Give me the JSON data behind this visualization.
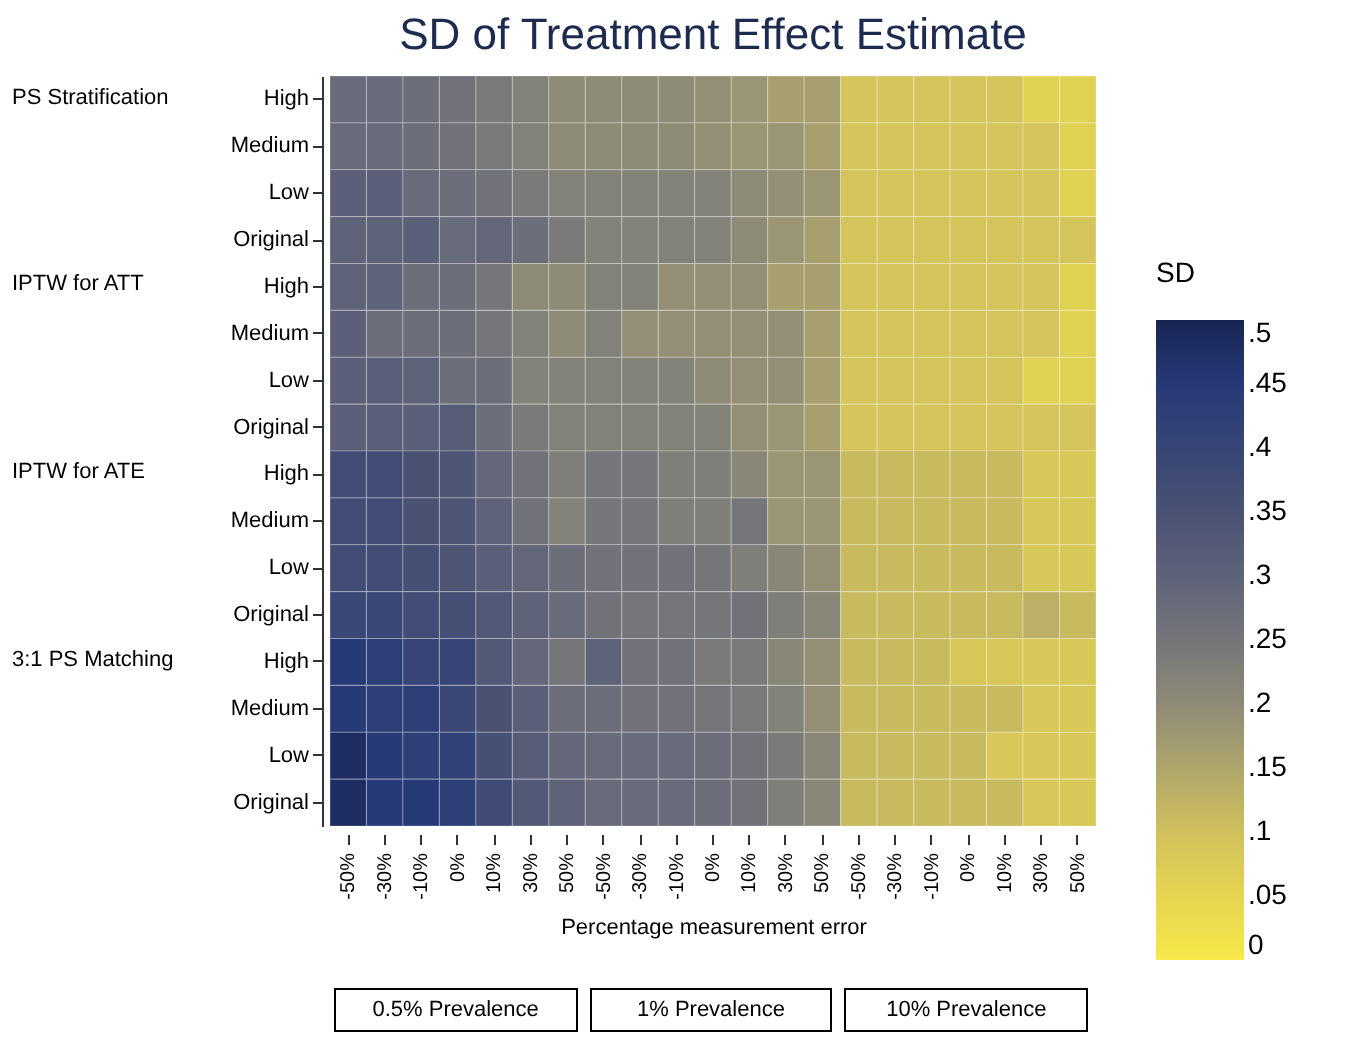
{
  "chart_data": {
    "type": "heatmap",
    "title": "SD of Treatment Effect Estimate",
    "xlabel": "Percentage measurement error",
    "clabel": "SD",
    "categories": [
      "-50%",
      "-30%",
      "-10%",
      "0%",
      "10%",
      "30%",
      "50%",
      "-50%",
      "-30%",
      "-10%",
      "0%",
      "10%",
      "30%",
      "50%",
      "-50%",
      "-30%",
      "-10%",
      "0%",
      "10%",
      "30%",
      "50%"
    ],
    "y_categories": [
      "High",
      "Medium",
      "Low",
      "Original",
      "High",
      "Medium",
      "Low",
      "Original",
      "High",
      "Medium",
      "Low",
      "Original",
      "High",
      "Medium",
      "Low",
      "Original"
    ],
    "cells": [
      [
        0.28,
        0.28,
        0.27,
        0.26,
        0.24,
        0.22,
        0.2,
        0.2,
        0.2,
        0.2,
        0.19,
        0.18,
        0.16,
        0.16,
        0.09,
        0.09,
        0.09,
        0.09,
        0.09,
        0.06,
        0.06
      ],
      [
        0.28,
        0.28,
        0.27,
        0.26,
        0.24,
        0.22,
        0.2,
        0.2,
        0.2,
        0.2,
        0.19,
        0.18,
        0.18,
        0.16,
        0.09,
        0.09,
        0.09,
        0.09,
        0.09,
        0.09,
        0.06
      ],
      [
        0.31,
        0.31,
        0.28,
        0.27,
        0.26,
        0.24,
        0.22,
        0.22,
        0.22,
        0.22,
        0.22,
        0.2,
        0.19,
        0.18,
        0.09,
        0.09,
        0.09,
        0.09,
        0.09,
        0.09,
        0.06
      ],
      [
        0.3,
        0.3,
        0.31,
        0.28,
        0.29,
        0.27,
        0.24,
        0.22,
        0.22,
        0.22,
        0.22,
        0.2,
        0.18,
        0.16,
        0.09,
        0.09,
        0.09,
        0.09,
        0.09,
        0.09,
        0.09
      ],
      [
        0.3,
        0.3,
        0.27,
        0.27,
        0.25,
        0.2,
        0.2,
        0.22,
        0.22,
        0.19,
        0.19,
        0.19,
        0.16,
        0.16,
        0.09,
        0.09,
        0.09,
        0.09,
        0.09,
        0.09,
        0.06
      ],
      [
        0.31,
        0.27,
        0.27,
        0.27,
        0.25,
        0.22,
        0.2,
        0.22,
        0.19,
        0.19,
        0.19,
        0.19,
        0.19,
        0.16,
        0.09,
        0.09,
        0.09,
        0.09,
        0.09,
        0.09,
        0.06
      ],
      [
        0.31,
        0.31,
        0.3,
        0.27,
        0.27,
        0.22,
        0.22,
        0.22,
        0.22,
        0.22,
        0.2,
        0.19,
        0.19,
        0.16,
        0.09,
        0.09,
        0.09,
        0.09,
        0.09,
        0.06,
        0.06
      ],
      [
        0.31,
        0.31,
        0.31,
        0.32,
        0.27,
        0.24,
        0.22,
        0.22,
        0.22,
        0.22,
        0.22,
        0.19,
        0.18,
        0.16,
        0.09,
        0.09,
        0.09,
        0.09,
        0.09,
        0.09,
        0.09
      ],
      [
        0.37,
        0.37,
        0.35,
        0.34,
        0.29,
        0.26,
        0.23,
        0.25,
        0.25,
        0.23,
        0.23,
        0.21,
        0.18,
        0.18,
        0.11,
        0.11,
        0.11,
        0.11,
        0.11,
        0.08,
        0.08
      ],
      [
        0.37,
        0.37,
        0.35,
        0.34,
        0.3,
        0.26,
        0.22,
        0.25,
        0.25,
        0.23,
        0.23,
        0.25,
        0.18,
        0.18,
        0.11,
        0.11,
        0.11,
        0.11,
        0.11,
        0.08,
        0.08
      ],
      [
        0.37,
        0.37,
        0.36,
        0.34,
        0.31,
        0.29,
        0.27,
        0.26,
        0.26,
        0.26,
        0.25,
        0.23,
        0.21,
        0.19,
        0.11,
        0.11,
        0.11,
        0.11,
        0.11,
        0.08,
        0.08
      ],
      [
        0.39,
        0.39,
        0.37,
        0.36,
        0.33,
        0.3,
        0.28,
        0.26,
        0.25,
        0.25,
        0.25,
        0.26,
        0.23,
        0.21,
        0.11,
        0.11,
        0.11,
        0.11,
        0.11,
        0.13,
        0.11
      ],
      [
        0.45,
        0.43,
        0.4,
        0.4,
        0.33,
        0.29,
        0.25,
        0.3,
        0.26,
        0.26,
        0.24,
        0.24,
        0.21,
        0.19,
        0.11,
        0.11,
        0.11,
        0.08,
        0.08,
        0.08,
        0.08
      ],
      [
        0.45,
        0.43,
        0.43,
        0.39,
        0.35,
        0.31,
        0.27,
        0.27,
        0.26,
        0.26,
        0.25,
        0.24,
        0.22,
        0.19,
        0.11,
        0.11,
        0.11,
        0.11,
        0.11,
        0.08,
        0.08
      ],
      [
        0.48,
        0.45,
        0.43,
        0.42,
        0.36,
        0.32,
        0.29,
        0.28,
        0.28,
        0.28,
        0.27,
        0.26,
        0.24,
        0.21,
        0.11,
        0.11,
        0.11,
        0.11,
        0.08,
        0.08,
        0.08
      ],
      [
        0.48,
        0.45,
        0.45,
        0.43,
        0.38,
        0.33,
        0.3,
        0.28,
        0.28,
        0.28,
        0.27,
        0.26,
        0.23,
        0.21,
        0.11,
        0.11,
        0.11,
        0.11,
        0.11,
        0.08,
        0.08
      ]
    ],
    "clim": [
      0,
      0.5
    ],
    "cticks": [
      0,
      {
        "value": 0.05,
        "label": ".05"
      },
      {
        "value": 0.1,
        "label": ".1"
      },
      {
        "value": 0.15,
        "label": ".15"
      },
      {
        "value": 0.2,
        "label": ".2"
      },
      {
        "value": 0.25,
        "label": ".25"
      },
      {
        "value": 0.3,
        "label": ".3"
      },
      {
        "value": 0.35,
        "label": ".35"
      },
      {
        "value": 0.4,
        "label": ".4"
      },
      {
        "value": 0.45,
        "label": ".45"
      },
      {
        "value": 0.5,
        "label": ".5"
      }
    ],
    "annotations": [
      "PS Stratification",
      "IPTW for ATT",
      "IPTW for ATE",
      "3:1 PS Matching",
      "0.5% Prevalence",
      "1% Prevalence",
      "10% Prevalence"
    ]
  }
}
